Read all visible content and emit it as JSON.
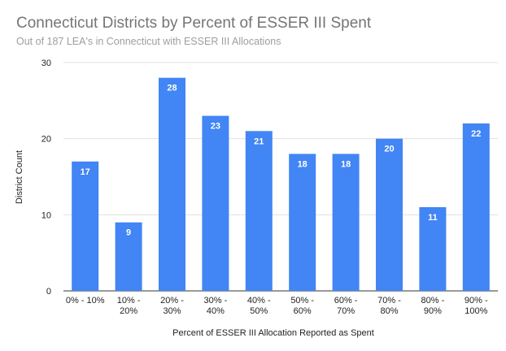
{
  "chart_data": {
    "type": "bar",
    "title": "Connecticut Districts by Percent of ESSER III Spent",
    "subtitle": "Out of 187 LEA's in Connecticut with ESSER III Allocations",
    "xlabel": "Percent of ESSER III Allocation Reported as Spent",
    "ylabel": "District Count",
    "categories": [
      [
        "0% - 10%"
      ],
      [
        "10% -",
        "20%"
      ],
      [
        "20% -",
        "30%"
      ],
      [
        "30% -",
        "40%"
      ],
      [
        "40% -",
        "50%"
      ],
      [
        "50% -",
        "60%"
      ],
      [
        "60% -",
        "70%"
      ],
      [
        "70% -",
        "80%"
      ],
      [
        "80% -",
        "90%"
      ],
      [
        "90% -",
        "100%"
      ]
    ],
    "values": [
      17,
      9,
      28,
      23,
      21,
      18,
      18,
      20,
      11,
      22
    ],
    "ylim": [
      0,
      30
    ],
    "yticks": [
      0,
      10,
      20,
      30
    ],
    "grid": true,
    "data_labels": true,
    "bar_color": "#4285f4"
  }
}
